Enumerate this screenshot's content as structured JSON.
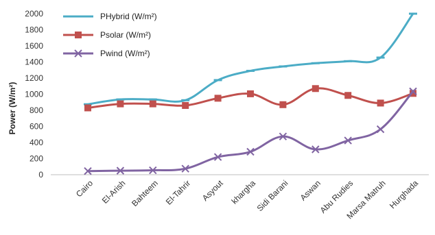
{
  "chart_data": {
    "type": "line",
    "title": "",
    "xlabel": "",
    "ylabel": "Power (W/m²)",
    "ylim": [
      0,
      2000
    ],
    "yticks": [
      0,
      200,
      400,
      600,
      800,
      1000,
      1200,
      1400,
      1600,
      1800,
      2000
    ],
    "grid": false,
    "legend_position": "top-left",
    "categories": [
      "Cairo",
      "El-Arish",
      "Bahteem",
      "El-Tahrir",
      "Asyout",
      "khargha",
      "Sidi Barani",
      "Aswan",
      "Abu Rudies",
      "Marsa Matruh",
      "Hurghada"
    ],
    "series": [
      {
        "name": "PHybrid (W/m²)",
        "color": "#4bacc6",
        "marker": "dash",
        "values": [
          875,
          935,
          935,
          925,
          1175,
          1290,
          1345,
          1385,
          1410,
          1455,
          2000
        ]
      },
      {
        "name": "Psolar (W/m²)",
        "color": "#c0504d",
        "marker": "square",
        "values": [
          830,
          880,
          880,
          860,
          950,
          1005,
          870,
          1070,
          985,
          890,
          1010
        ]
      },
      {
        "name": "Pwind (W/m²)",
        "color": "#8064a2",
        "marker": "x",
        "values": [
          45,
          50,
          55,
          75,
          220,
          285,
          475,
          315,
          425,
          565,
          1035
        ]
      }
    ]
  }
}
